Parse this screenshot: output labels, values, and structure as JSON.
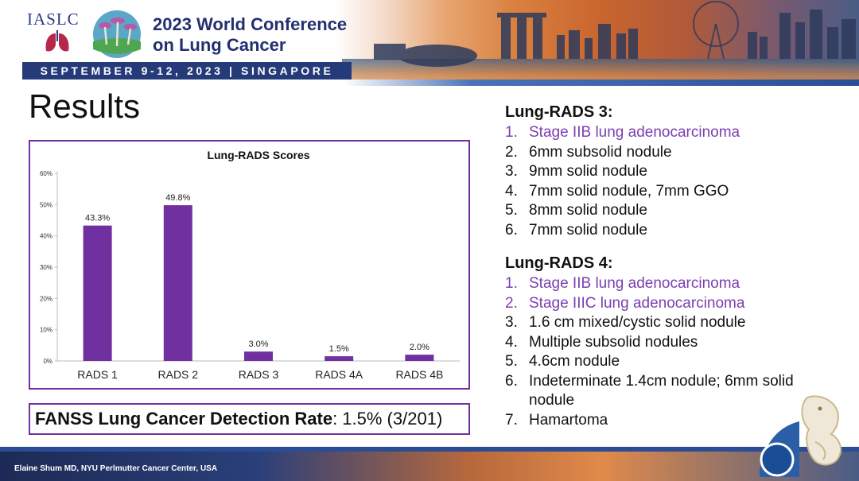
{
  "header": {
    "org_logo": "IASLC",
    "title_line1": "2023 World Conference",
    "title_line2": "on Lung Cancer",
    "date_location": "SEPTEMBER 9-12, 2023 | SINGAPORE"
  },
  "slide": {
    "title": "Results"
  },
  "chart_data": {
    "type": "bar",
    "title": "Lung-RADS Scores",
    "categories": [
      "RADS 1",
      "RADS 2",
      "RADS 3",
      "RADS 4A",
      "RADS 4B"
    ],
    "values": [
      43.3,
      49.8,
      3.0,
      1.5,
      2.0
    ],
    "data_labels": [
      "43.3%",
      "49.8%",
      "3.0%",
      "1.5%",
      "2.0%"
    ],
    "ytick_labels": [
      "0%",
      "10%",
      "20%",
      "30%",
      "40%",
      "50%",
      "60%"
    ],
    "ylim": [
      0,
      60
    ],
    "color": "#7030a0",
    "grid": false
  },
  "detection_rate": {
    "label": "FANSS Lung Cancer Detection Rate",
    "value": ": 1.5% (3/201)"
  },
  "rads3": {
    "heading": "Lung-RADS 3:",
    "items": [
      {
        "num": "1.",
        "text": "Stage IIB lung adenocarcinoma",
        "highlight": true
      },
      {
        "num": "2.",
        "text": "6mm subsolid nodule",
        "highlight": false
      },
      {
        "num": "3.",
        "text": "9mm solid nodule",
        "highlight": false
      },
      {
        "num": "4.",
        "text": "7mm solid nodule, 7mm GGO",
        "highlight": false
      },
      {
        "num": "5.",
        "text": "8mm solid nodule",
        "highlight": false
      },
      {
        "num": "6.",
        "text": "7mm solid nodule",
        "highlight": false
      }
    ]
  },
  "rads4": {
    "heading": "Lung-RADS 4:",
    "items": [
      {
        "num": "1.",
        "text": "Stage IIB lung adenocarcinoma",
        "highlight": true
      },
      {
        "num": "2.",
        "text": "Stage IIIC lung adenocarcinoma",
        "highlight": true
      },
      {
        "num": "3.",
        "text": "1.6 cm mixed/cystic solid nodule",
        "highlight": false
      },
      {
        "num": "4.",
        "text": "Multiple subsolid nodules",
        "highlight": false
      },
      {
        "num": "5.",
        "text": "4.6cm nodule",
        "highlight": false
      },
      {
        "num": "6.",
        "text": "Indeterminate 1.4cm nodule; 6mm solid nodule",
        "highlight": false
      },
      {
        "num": "7.",
        "text": "Hamartoma",
        "highlight": false
      }
    ]
  },
  "footer": {
    "credit": "Elaine Shum MD, NYU Perlmutter Cancer Center, USA"
  },
  "colors": {
    "accent_purple": "#7030a0",
    "highlight_text": "#7a3fb0",
    "conference_blue": "#253a78"
  }
}
